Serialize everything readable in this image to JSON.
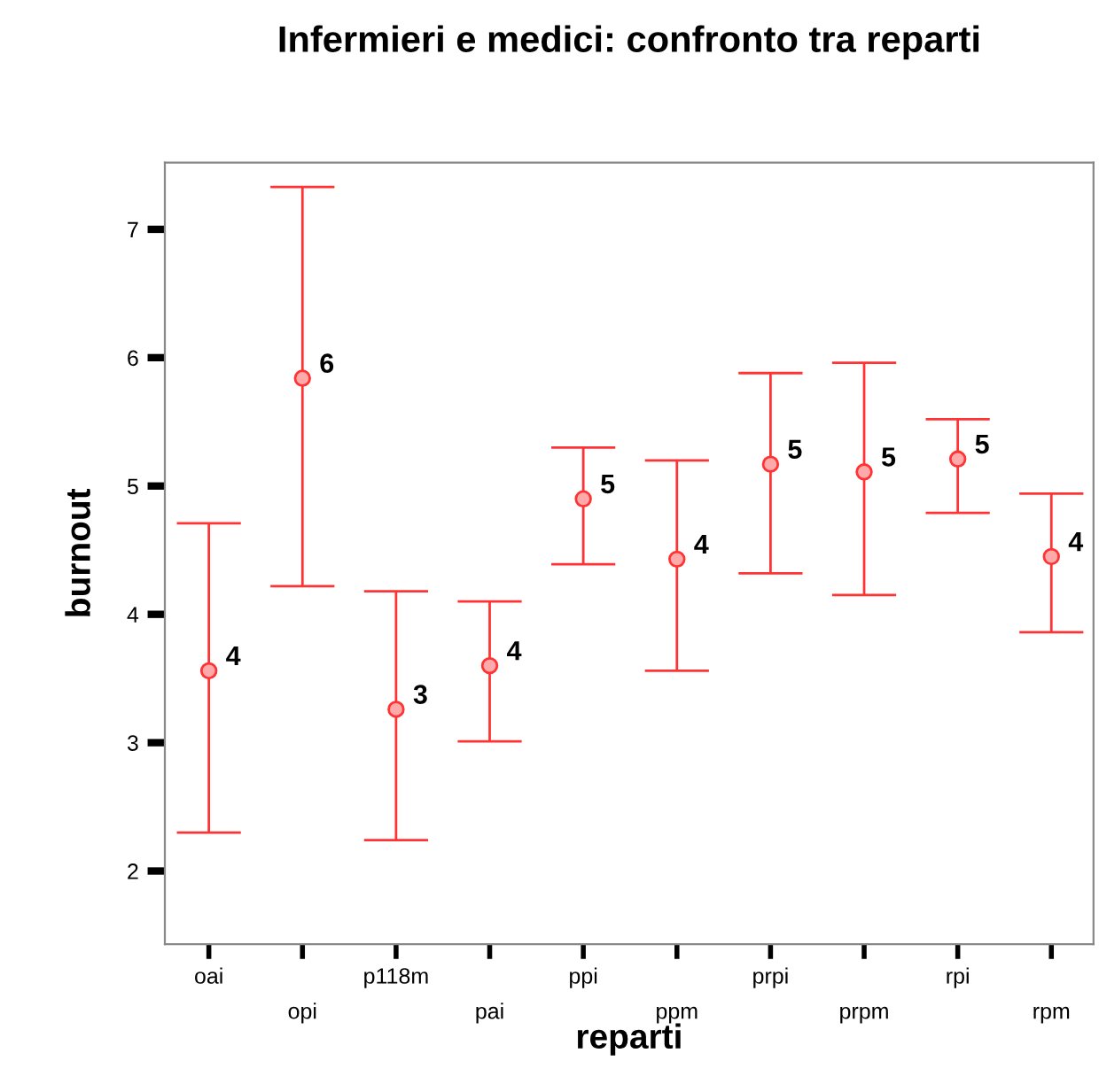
{
  "chart_data": {
    "type": "scatter",
    "title": "Infermieri e medici: confronto tra reparti",
    "xlabel": "reparti",
    "ylabel": "burnout",
    "categories": [
      "oai",
      "opi",
      "p118m",
      "pai",
      "ppi",
      "ppm",
      "prpi",
      "prpm",
      "rpi",
      "rpm"
    ],
    "series": [
      {
        "color": "#ff3333",
        "values": [
          3.56,
          5.84,
          3.26,
          3.6,
          4.9,
          4.43,
          5.17,
          5.11,
          5.21,
          4.45
        ],
        "errors": [
          [
            2.3,
            4.71
          ],
          [
            4.22,
            7.33
          ],
          [
            2.24,
            4.18
          ],
          [
            3.01,
            4.1
          ],
          [
            4.39,
            5.3
          ],
          [
            3.56,
            5.2
          ],
          [
            4.32,
            5.88
          ],
          [
            4.15,
            5.96
          ],
          [
            4.79,
            5.52
          ],
          [
            3.86,
            4.94
          ]
        ],
        "value_labels": [
          "4",
          "6",
          "3",
          "4",
          "5",
          "4",
          "5",
          "5",
          "5",
          "4"
        ]
      }
    ],
    "ylim": [
      1.43,
      7.52
    ],
    "yticks": [
      2,
      3,
      4,
      5,
      6,
      7
    ],
    "marker": "circle",
    "grid": false,
    "legend": false
  }
}
